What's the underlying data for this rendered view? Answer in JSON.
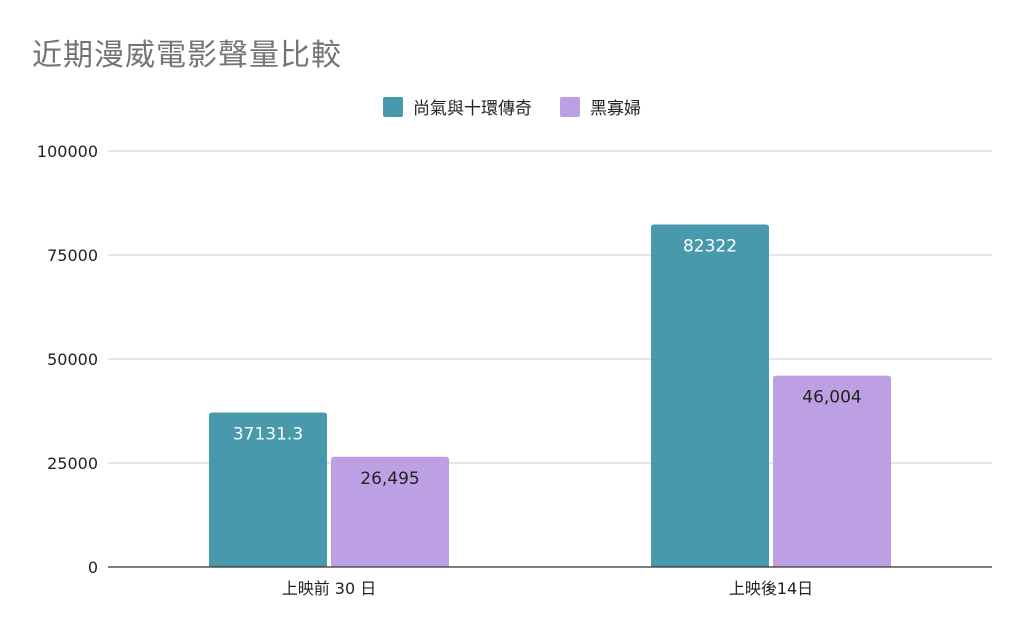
{
  "chart_data": {
    "type": "bar",
    "title": "近期漫威電影聲量比較",
    "categories": [
      "上映前 30 日",
      "上映後14日"
    ],
    "series": [
      {
        "name": "尚氣與十環傳奇",
        "color": "#4799ab",
        "values": [
          37131.3,
          82322
        ],
        "labels": [
          "37131.3",
          "82322"
        ],
        "label_color": "#ffffff"
      },
      {
        "name": "黑寡婦",
        "color": "#bca0e3",
        "values": [
          26495,
          46004
        ],
        "labels": [
          "26,495",
          "46,004"
        ],
        "label_color": "#222222"
      }
    ],
    "ylim": [
      0,
      100000
    ],
    "yticks": [
      0,
      25000,
      50000,
      75000,
      100000
    ],
    "ytick_labels": [
      "0",
      "25000",
      "50000",
      "75000",
      "100000"
    ],
    "grid": true,
    "legend_position": "top-center"
  }
}
